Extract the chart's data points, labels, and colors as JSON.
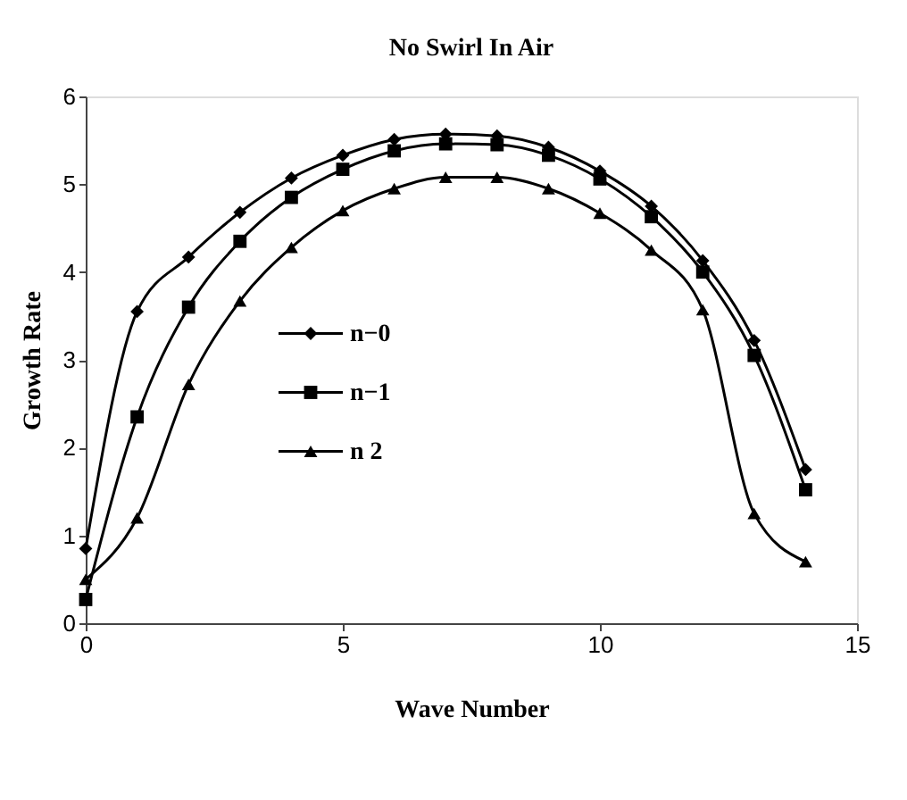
{
  "chart_data": {
    "type": "line",
    "title": "No Swirl In Air",
    "xlabel": "Wave Number",
    "ylabel": "Growth Rate",
    "x": [
      0,
      1,
      2,
      3,
      4,
      5,
      6,
      7,
      8,
      9,
      10,
      11,
      12,
      13,
      14
    ],
    "series": [
      {
        "name": "n−0",
        "color": "#000000",
        "marker": "diamond",
        "values": [
          0.85,
          3.55,
          4.17,
          4.68,
          5.07,
          5.33,
          5.51,
          5.57,
          5.55,
          5.42,
          5.15,
          4.75,
          4.13,
          3.22,
          1.75
        ]
      },
      {
        "name": "n−1",
        "color": "#000000",
        "marker": "square",
        "values": [
          0.27,
          2.35,
          3.6,
          4.35,
          4.85,
          5.17,
          5.38,
          5.46,
          5.45,
          5.33,
          5.06,
          4.63,
          4.0,
          3.05,
          1.52
        ]
      },
      {
        "name": "n  2",
        "color": "#000000",
        "marker": "triangle",
        "values": [
          0.5,
          1.2,
          2.72,
          3.67,
          4.28,
          4.7,
          4.95,
          5.08,
          5.08,
          4.95,
          4.67,
          4.25,
          3.57,
          1.25,
          0.7
        ]
      }
    ],
    "xlim": [
      0,
      15
    ],
    "xticks": [
      0,
      5,
      10,
      15
    ],
    "ylim": [
      0,
      6
    ],
    "yticks": [
      0,
      1,
      2,
      3,
      4,
      5,
      6
    ],
    "grid": false,
    "legend": "center",
    "line_style": "solid"
  }
}
